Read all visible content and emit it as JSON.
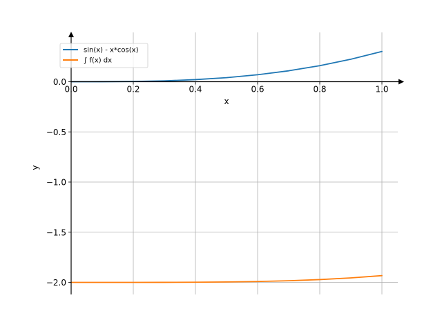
{
  "chart_data": {
    "type": "line",
    "xlabel": "x",
    "ylabel": "y",
    "xlim": [
      0.0,
      1.05
    ],
    "ylim": [
      -2.12,
      0.5
    ],
    "grid": true,
    "legend_position": "top-left",
    "x_ticks": [
      {
        "value": 0.0,
        "label": "0.0"
      },
      {
        "value": 0.2,
        "label": "0.2"
      },
      {
        "value": 0.4,
        "label": "0.4"
      },
      {
        "value": 0.6,
        "label": "0.6"
      },
      {
        "value": 0.8,
        "label": "0.8"
      },
      {
        "value": 1.0,
        "label": "1.0"
      }
    ],
    "y_ticks": [
      {
        "value": 0.0,
        "label": "0.0"
      },
      {
        "value": -0.5,
        "label": "−0.5"
      },
      {
        "value": -1.0,
        "label": "−1.0"
      },
      {
        "value": -1.5,
        "label": "−1.5"
      },
      {
        "value": -2.0,
        "label": "−2.0"
      }
    ],
    "x": [
      0.0,
      0.1,
      0.2,
      0.3,
      0.4,
      0.5,
      0.6,
      0.7,
      0.8,
      0.9,
      1.0
    ],
    "series": [
      {
        "name": "sin(x) - x*cos(x)",
        "color": "#1f77b4",
        "values": [
          0.0,
          0.0003,
          0.0026,
          0.0087,
          0.021,
          0.0406,
          0.0694,
          0.1088,
          0.1601,
          0.2239,
          0.3012
        ]
      },
      {
        "name": "∫ f(x) dx",
        "color": "#ff7f0e",
        "values": [
          -2.0,
          -2.0,
          -1.9999,
          -1.9995,
          -1.9983,
          -1.9959,
          -1.9913,
          -1.9837,
          -1.972,
          -1.9553,
          -1.9326
        ]
      }
    ]
  }
}
